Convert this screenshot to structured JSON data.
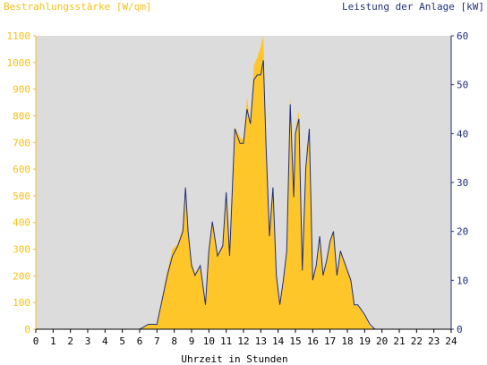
{
  "chart_data": {
    "type": "area",
    "ylabel_left": "Bestrahlungsstärke [W/qm]",
    "ylabel_right": "Leistung der Anlage [kW]",
    "xlabel": "Uhrzeit in Stunden",
    "xlim": [
      0,
      24
    ],
    "ylim_left": [
      0,
      1100
    ],
    "ylim_right": [
      0,
      60
    ],
    "x_ticks": [
      "0",
      "1",
      "2",
      "3",
      "4",
      "5",
      "6",
      "7",
      "8",
      "9",
      "10",
      "11",
      "12",
      "13",
      "14",
      "15",
      "16",
      "17",
      "18",
      "19",
      "20",
      "21",
      "22",
      "23",
      "24"
    ],
    "y_left_ticks": [
      "0",
      "100",
      "200",
      "300",
      "400",
      "500",
      "600",
      "700",
      "800",
      "900",
      "1000",
      "1100"
    ],
    "y_right_ticks": [
      "0",
      "10",
      "20",
      "30",
      "40",
      "50",
      "60"
    ],
    "grid": false,
    "colors": {
      "irradiance": "#ffc62a",
      "power": "#1f2f7a",
      "plot_bg": "#dcdcdc",
      "left_axis": "#f5c016",
      "right_axis": "#1f2f7a"
    },
    "series": [
      {
        "name": "Bestrahlungsstärke [W/qm]",
        "axis": "left",
        "x": [
          0,
          6,
          6.5,
          7,
          7.3,
          7.6,
          7.9,
          8.2,
          8.5,
          8.65,
          8.8,
          9.0,
          9.2,
          9.5,
          9.8,
          10.0,
          10.2,
          10.5,
          10.8,
          11.0,
          11.2,
          11.5,
          11.8,
          12.0,
          12.2,
          12.4,
          12.6,
          12.8,
          13.0,
          13.15,
          13.3,
          13.5,
          13.7,
          13.9,
          14.1,
          14.3,
          14.5,
          14.7,
          14.9,
          15.0,
          15.2,
          15.4,
          15.6,
          15.8,
          16.0,
          16.2,
          16.4,
          16.6,
          16.8,
          17.0,
          17.2,
          17.4,
          17.6,
          17.8,
          18.0,
          18.2,
          18.4,
          18.6,
          18.8,
          19.0,
          19.3,
          19.6,
          19.8,
          20.0,
          24
        ],
        "y": [
          0,
          0,
          20,
          20,
          120,
          220,
          300,
          320,
          380,
          510,
          380,
          250,
          210,
          240,
          100,
          300,
          400,
          280,
          320,
          510,
          280,
          760,
          720,
          710,
          870,
          760,
          990,
          1020,
          1060,
          1100,
          700,
          350,
          530,
          200,
          100,
          180,
          300,
          870,
          500,
          750,
          820,
          220,
          600,
          760,
          180,
          230,
          350,
          200,
          250,
          330,
          370,
          200,
          300,
          260,
          220,
          180,
          90,
          90,
          70,
          50,
          10,
          0,
          0,
          0,
          0
        ]
      },
      {
        "name": "Leistung der Anlage [kW]",
        "axis": "right",
        "x": [
          0,
          6,
          6.5,
          7,
          7.3,
          7.6,
          7.9,
          8.2,
          8.5,
          8.65,
          8.8,
          9.0,
          9.2,
          9.5,
          9.8,
          10.0,
          10.2,
          10.5,
          10.8,
          11.0,
          11.2,
          11.5,
          11.8,
          12.0,
          12.2,
          12.4,
          12.6,
          12.8,
          13.0,
          13.15,
          13.3,
          13.5,
          13.7,
          13.9,
          14.1,
          14.3,
          14.5,
          14.7,
          14.9,
          15.0,
          15.2,
          15.4,
          15.6,
          15.8,
          16.0,
          16.2,
          16.4,
          16.6,
          16.8,
          17.0,
          17.2,
          17.4,
          17.6,
          17.8,
          18.0,
          18.2,
          18.4,
          18.6,
          18.8,
          19.0,
          19.3,
          19.6,
          19.8,
          20.0,
          24
        ],
        "y": [
          0,
          0,
          1,
          1,
          6,
          11,
          15,
          17,
          20,
          29,
          20,
          13,
          11,
          13,
          5,
          16,
          22,
          15,
          17,
          28,
          15,
          41,
          38,
          38,
          45,
          42,
          51,
          52,
          52,
          55,
          38,
          19,
          29,
          11,
          5,
          10,
          16,
          46,
          27,
          40,
          43,
          12,
          33,
          41,
          10,
          13,
          19,
          11,
          14,
          18,
          20,
          11,
          16,
          14,
          12,
          10,
          5,
          5,
          4,
          3,
          1,
          0,
          0,
          0,
          0
        ]
      }
    ]
  }
}
